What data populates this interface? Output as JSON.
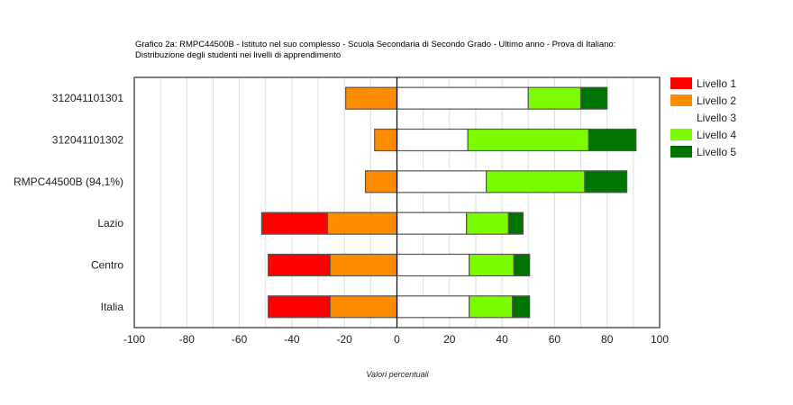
{
  "chart_data": {
    "type": "bar",
    "orientation": "horizontal",
    "stacked": "diverging",
    "title_line1": "Grafico 2a: RMPC44500B - Istituto nel suo complesso - Scuola Secondaria di Secondo Grado - Ultimo anno - Prova di Italiano:",
    "title_line2": "Distribuzione degli studenti nei livelli di apprendimento",
    "xlabel": "Valori percentuali",
    "xlim": [
      -100,
      100
    ],
    "xticks": [
      -100,
      -80,
      -60,
      -40,
      -20,
      0,
      20,
      40,
      60,
      80,
      100
    ],
    "grid": true,
    "legend_position": "right",
    "categories": [
      "312041101301",
      "312041101302",
      "RMPC44500B (94,1%)",
      "Lazio",
      "Centro",
      "Italia"
    ],
    "series": [
      {
        "name": "Livello 1",
        "color": "#ff0000",
        "side": "left",
        "values": [
          0,
          0,
          0,
          25,
          23.5,
          23.5
        ]
      },
      {
        "name": "Livello 2",
        "color": "#ff8c00",
        "side": "left",
        "values": [
          19.5,
          8.5,
          12,
          26.5,
          25.5,
          25.5
        ]
      },
      {
        "name": "Livello 3",
        "color": "#ffffff",
        "side": "right",
        "values": [
          50,
          27,
          34,
          26.5,
          27.5,
          27.5
        ]
      },
      {
        "name": "Livello 4",
        "color": "#7cfc00",
        "side": "right",
        "values": [
          20,
          46,
          37.5,
          16,
          17,
          16.5
        ]
      },
      {
        "name": "Livello 5",
        "color": "#007400",
        "side": "right",
        "values": [
          10,
          18,
          16,
          5.5,
          6,
          6.5
        ]
      }
    ]
  }
}
